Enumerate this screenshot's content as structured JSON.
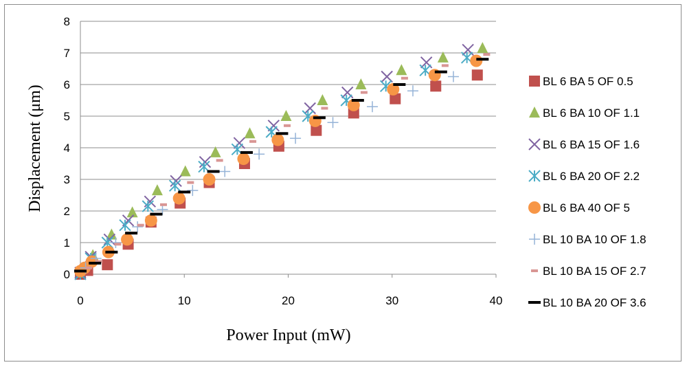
{
  "chart_data": {
    "type": "scatter",
    "title": "",
    "xlabel": "Power Input (mW)",
    "ylabel": "Displacement (μm)",
    "xlim": [
      0,
      40
    ],
    "ylim": [
      0,
      8
    ],
    "xticks": [
      "0",
      "10",
      "20",
      "30",
      "40"
    ],
    "yticks": [
      "0",
      "1",
      "2",
      "3",
      "4",
      "5",
      "6",
      "7",
      "8"
    ],
    "grid": "horizontal",
    "legend_position": "right",
    "series": [
      {
        "name": "BL 6 BA 5 OF 0.5",
        "marker": "square",
        "color": "#C0504D",
        "x": [
          0,
          0.7,
          2.6,
          4.6,
          6.8,
          9.6,
          12.4,
          15.8,
          19.1,
          22.7,
          26.3,
          30.3,
          34.2,
          38.2
        ],
        "y": [
          0,
          0.12,
          0.3,
          0.95,
          1.65,
          2.25,
          2.9,
          3.5,
          4.05,
          4.55,
          5.1,
          5.55,
          5.95,
          6.3
        ]
      },
      {
        "name": "BL 6 BA 10 OF 1.1",
        "marker": "triangle",
        "color": "#9BBB59",
        "x": [
          0,
          1.2,
          3.0,
          5.0,
          7.4,
          10.1,
          13.0,
          16.3,
          19.8,
          23.3,
          27.0,
          30.9,
          34.9,
          38.7
        ],
        "y": [
          0.05,
          0.6,
          1.25,
          1.95,
          2.65,
          3.25,
          3.85,
          4.45,
          5.0,
          5.5,
          6.0,
          6.45,
          6.85,
          7.15
        ]
      },
      {
        "name": "BL 6 BA 15 OF 1.6",
        "marker": "x",
        "color": "#8064A2",
        "x": [
          0,
          1.0,
          2.8,
          4.6,
          6.7,
          9.2,
          12.0,
          15.3,
          18.6,
          22.1,
          25.7,
          29.5,
          33.3,
          37.3
        ],
        "y": [
          0.05,
          0.55,
          1.1,
          1.7,
          2.3,
          2.95,
          3.55,
          4.15,
          4.7,
          5.25,
          5.75,
          6.25,
          6.7,
          7.1
        ]
      },
      {
        "name": "BL 6 BA 20 OF 2.2",
        "marker": "asterisk",
        "color": "#4BACC6",
        "x": [
          0,
          1.0,
          2.6,
          4.3,
          6.5,
          9.1,
          11.9,
          15.1,
          18.4,
          21.9,
          25.6,
          29.4,
          33.2,
          37.2
        ],
        "y": [
          0,
          0.5,
          1.0,
          1.55,
          2.15,
          2.8,
          3.4,
          3.95,
          4.5,
          5.0,
          5.5,
          5.95,
          6.45,
          6.85
        ]
      },
      {
        "name": "BL 6 BA 40 OF 5",
        "marker": "circle",
        "color": "#F79646",
        "x": [
          0,
          0.4,
          1.1,
          2.7,
          4.5,
          6.8,
          9.5,
          12.4,
          15.7,
          19.0,
          22.6,
          26.3,
          30.1,
          34.1,
          38.1
        ],
        "y": [
          0.1,
          0.2,
          0.4,
          0.7,
          1.1,
          1.7,
          2.4,
          3.0,
          3.65,
          4.25,
          4.85,
          5.35,
          5.85,
          6.3,
          6.75
        ]
      },
      {
        "name": "BL 10 BA 10 OF 1.8",
        "marker": "plus",
        "color": "#95B3D7",
        "x": [
          0.5,
          1.5,
          3.4,
          5.5,
          7.9,
          10.8,
          13.9,
          17.2,
          20.7,
          24.3,
          28.1,
          32.0,
          35.9
        ],
        "y": [
          0.2,
          0.5,
          1.0,
          1.5,
          2.05,
          2.65,
          3.25,
          3.8,
          4.3,
          4.8,
          5.3,
          5.8,
          6.25
        ]
      },
      {
        "name": "BL 10 BA 15 OF 2.7",
        "marker": "dash",
        "color": "#D99694",
        "x": [
          0.8,
          1.8,
          3.6,
          5.8,
          8.0,
          10.6,
          13.4,
          16.6,
          19.9,
          23.5,
          27.3,
          31.2,
          35.1,
          39.1
        ],
        "y": [
          0.2,
          0.4,
          0.95,
          1.55,
          2.2,
          2.9,
          3.6,
          4.2,
          4.7,
          5.25,
          5.75,
          6.2,
          6.6,
          6.95
        ]
      },
      {
        "name": "BL 10 BA 20 OF 3.6",
        "marker": "bar",
        "color": "#000000",
        "x": [
          0,
          1.4,
          3.0,
          4.9,
          7.3,
          10.0,
          12.8,
          16.0,
          19.4,
          23.0,
          26.7,
          30.7,
          34.7,
          38.7
        ],
        "y": [
          0.1,
          0.35,
          0.7,
          1.3,
          1.9,
          2.6,
          3.25,
          3.85,
          4.45,
          4.95,
          5.5,
          6.0,
          6.4,
          6.8
        ]
      }
    ]
  }
}
